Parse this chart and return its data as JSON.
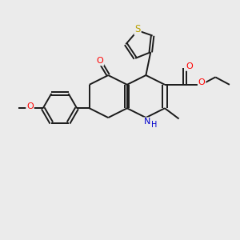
{
  "bg_color": "#ebebeb",
  "bond_color": "#1a1a1a",
  "atom_colors": {
    "O": "#ff0000",
    "N": "#0000cd",
    "S": "#b8a000",
    "C": "#1a1a1a"
  },
  "figsize": [
    3.0,
    3.0
  ],
  "dpi": 100
}
